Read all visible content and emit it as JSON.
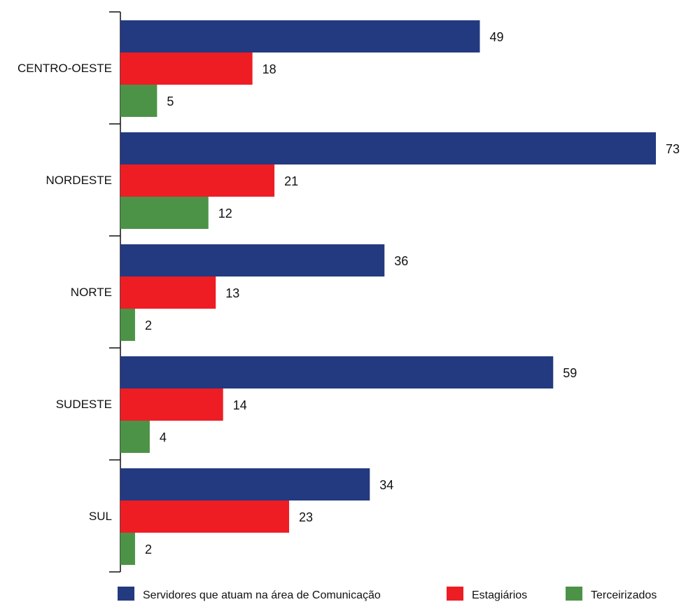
{
  "chart_data": {
    "type": "bar",
    "orientation": "horizontal",
    "categories": [
      "CENTRO-OESTE",
      "NORDESTE",
      "NORTE",
      "SUDESTE",
      "SUL"
    ],
    "series": [
      {
        "name": "Servidores que atuam  na área de Comunicação",
        "color": "#233a80",
        "values": [
          49,
          73,
          36,
          59,
          34
        ]
      },
      {
        "name": "Estagiários",
        "color": "#ee1d24",
        "values": [
          18,
          21,
          13,
          14,
          23
        ]
      },
      {
        "name": "Terceirizados",
        "color": "#4c9347",
        "values": [
          5,
          12,
          2,
          4,
          2
        ]
      }
    ],
    "title": "",
    "xlabel": "",
    "ylabel": "",
    "xlim": [
      0,
      73
    ],
    "grid": false,
    "legend_position": "bottom",
    "data_labels": true
  }
}
